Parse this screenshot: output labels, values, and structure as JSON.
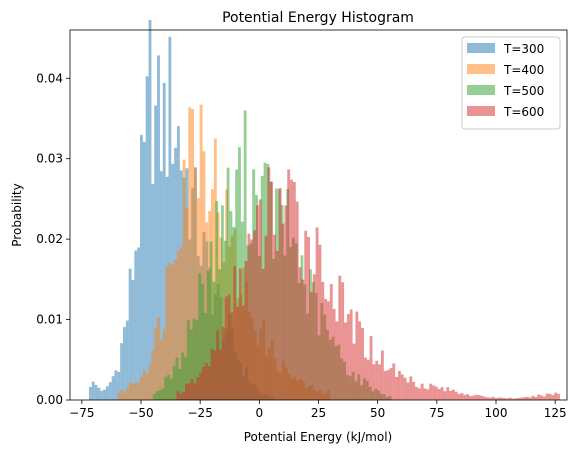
{
  "chart_data": {
    "type": "histogram",
    "title": "Potential Energy Histogram",
    "xlabel": "Potential Energy (kJ/mol)",
    "ylabel": "Probability",
    "xlim": [
      -80,
      130
    ],
    "ylim": [
      0,
      0.046
    ],
    "xticks": [
      -75,
      -50,
      -25,
      0,
      25,
      50,
      75,
      100,
      125
    ],
    "yticks": [
      0.0,
      0.01,
      0.02,
      0.03,
      0.04
    ],
    "xtick_labels": [
      "−75",
      "−50",
      "−25",
      "0",
      "25",
      "50",
      "75",
      "100",
      "125"
    ],
    "ytick_labels": [
      "0.00",
      "0.01",
      "0.02",
      "0.03",
      "0.04"
    ],
    "bin_width": 1.2,
    "grid": false,
    "legend_position": "top-right",
    "series": [
      {
        "name": "T=300",
        "color": "#1f77b4",
        "opacity": 0.5,
        "range": [
          -72,
          5
        ],
        "peaks": [
          [
            -70,
            0.002
          ],
          [
            -65,
            0.001
          ],
          [
            -60,
            0.004
          ],
          [
            -56,
            0.01
          ],
          [
            -52,
            0.02
          ],
          [
            -48,
            0.03
          ],
          [
            -46,
            0.04
          ],
          [
            -44,
            0.034
          ],
          [
            -40,
            0.034
          ],
          [
            -37,
            0.037
          ],
          [
            -33,
            0.031
          ],
          [
            -28,
            0.024
          ],
          [
            -22,
            0.016
          ],
          [
            -16,
            0.011
          ],
          [
            -10,
            0.006
          ],
          [
            -5,
            0.003
          ],
          [
            0,
            0.001
          ],
          [
            4,
            0.0005
          ]
        ]
      },
      {
        "name": "T=400",
        "color": "#ff7f0e",
        "opacity": 0.5,
        "range": [
          -60,
          30
        ],
        "peaks": [
          [
            -58,
            0.001
          ],
          [
            -50,
            0.003
          ],
          [
            -45,
            0.006
          ],
          [
            -40,
            0.012
          ],
          [
            -35,
            0.024
          ],
          [
            -30,
            0.031
          ],
          [
            -26,
            0.034
          ],
          [
            -22,
            0.031
          ],
          [
            -18,
            0.026
          ],
          [
            -13,
            0.02
          ],
          [
            -8,
            0.015
          ],
          [
            -3,
            0.011
          ],
          [
            3,
            0.007
          ],
          [
            10,
            0.004
          ],
          [
            18,
            0.002
          ],
          [
            26,
            0.001
          ]
        ]
      },
      {
        "name": "T=500",
        "color": "#2ca02c",
        "opacity": 0.5,
        "range": [
          -45,
          55
        ],
        "peaks": [
          [
            -43,
            0.001
          ],
          [
            -35,
            0.004
          ],
          [
            -28,
            0.01
          ],
          [
            -22,
            0.016
          ],
          [
            -16,
            0.022
          ],
          [
            -10,
            0.025
          ],
          [
            -6,
            0.028
          ],
          [
            -3,
            0.026
          ],
          [
            3,
            0.024
          ],
          [
            8,
            0.022
          ],
          [
            14,
            0.02
          ],
          [
            20,
            0.014
          ],
          [
            26,
            0.01
          ],
          [
            33,
            0.006
          ],
          [
            40,
            0.003
          ],
          [
            48,
            0.0015
          ],
          [
            54,
            0.0005
          ]
        ]
      },
      {
        "name": "T=600",
        "color": "#d62728",
        "opacity": 0.5,
        "range": [
          -35,
          126
        ],
        "peaks": [
          [
            -33,
            0.001
          ],
          [
            -25,
            0.003
          ],
          [
            -18,
            0.007
          ],
          [
            -12,
            0.012
          ],
          [
            -6,
            0.017
          ],
          [
            0,
            0.02
          ],
          [
            5,
            0.024
          ],
          [
            10,
            0.024
          ],
          [
            15,
            0.022
          ],
          [
            20,
            0.02
          ],
          [
            26,
            0.017
          ],
          [
            32,
            0.013
          ],
          [
            38,
            0.01
          ],
          [
            45,
            0.007
          ],
          [
            52,
            0.005
          ],
          [
            60,
            0.003
          ],
          [
            68,
            0.002
          ],
          [
            76,
            0.0015
          ],
          [
            84,
            0.001
          ],
          [
            92,
            0.0005
          ],
          [
            100,
            0.0003
          ],
          [
            110,
            0.0002
          ],
          [
            125,
            0.0008
          ]
        ]
      }
    ]
  }
}
